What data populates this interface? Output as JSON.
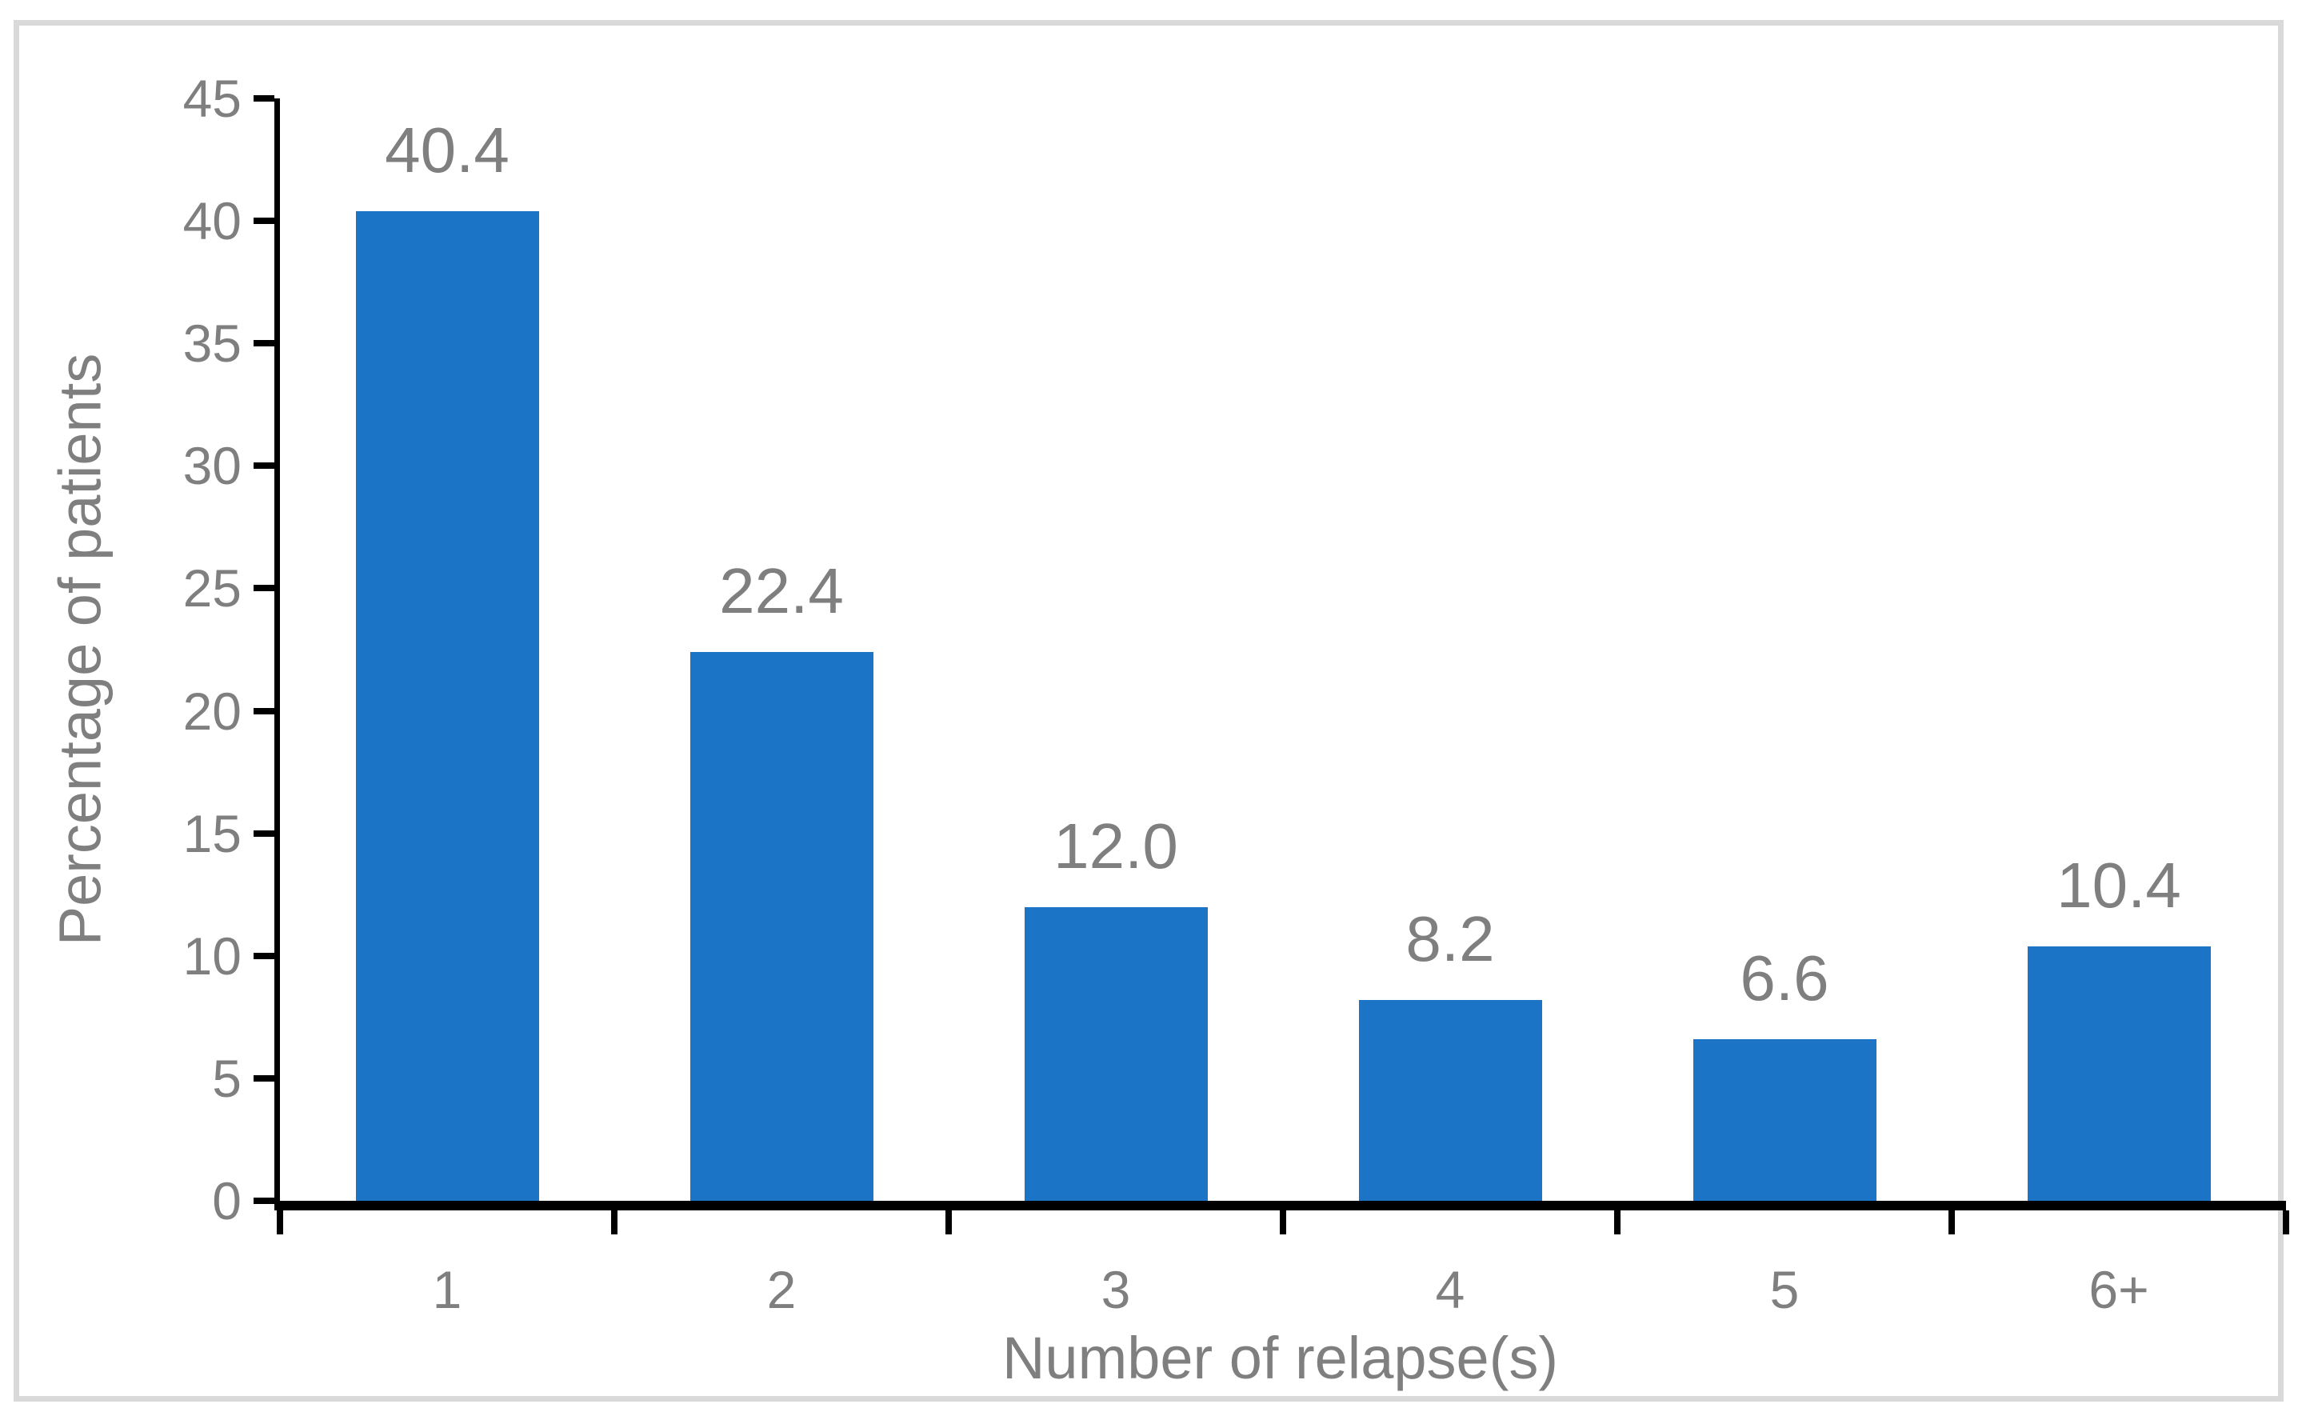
{
  "chart_data": {
    "type": "bar",
    "categories": [
      "1",
      "2",
      "3",
      "4",
      "5",
      "6+"
    ],
    "values": [
      40.4,
      22.4,
      12.0,
      8.2,
      6.6,
      10.4
    ],
    "data_labels": [
      "40.4",
      "22.4",
      "12.0",
      "8.2",
      "6.6",
      "10.4"
    ],
    "title": "",
    "xlabel": "Number of relapse(s)",
    "ylabel": "Percentage of patients",
    "ylim": [
      0,
      45
    ],
    "yticks": [
      0,
      5,
      10,
      15,
      20,
      25,
      30,
      35,
      40,
      45
    ],
    "grid": false,
    "legend": "none",
    "bar_color": "#1B74C6",
    "text_color": "#7F7F7F",
    "axis_color": "#000000",
    "frame_color": "#D9D9D9",
    "background_color": "#FFFFFF"
  }
}
